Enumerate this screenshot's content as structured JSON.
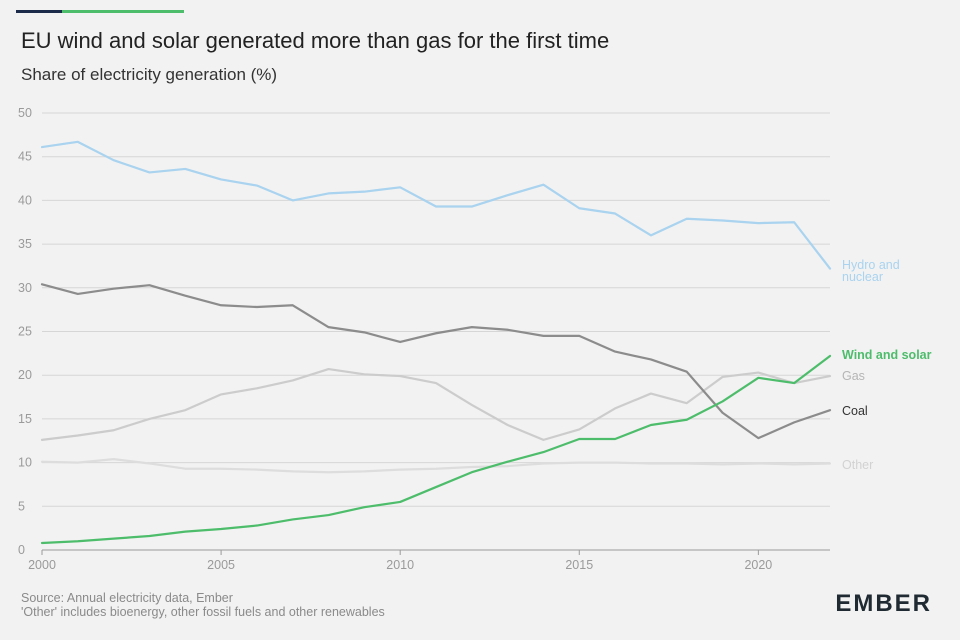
{
  "header": {
    "title": "EU wind and solar generated more than gas for the first time",
    "subtitle": "Share of electricity generation (%)",
    "accent_colors": [
      "#1c2b4a",
      "#4dbd6b"
    ]
  },
  "footer": {
    "source": "Source: Annual electricity data, Ember",
    "note": "'Other' includes bioenergy, other fossil fuels and other renewables",
    "logo": "EMBER"
  },
  "chart_data": {
    "type": "line",
    "title": "EU wind and solar generated more than gas for the first time",
    "subtitle": "Share of electricity generation (%)",
    "x": [
      2000,
      2001,
      2002,
      2003,
      2004,
      2005,
      2006,
      2007,
      2008,
      2009,
      2010,
      2011,
      2012,
      2013,
      2014,
      2015,
      2016,
      2017,
      2018,
      2019,
      2020,
      2021,
      2022
    ],
    "xlim": [
      2000,
      2022
    ],
    "ylim": [
      0,
      50
    ],
    "x_ticks": [
      "2000",
      "2005",
      "2010",
      "2015",
      "2020"
    ],
    "y_ticks": [
      "0",
      "5",
      "10",
      "15",
      "20",
      "25",
      "30",
      "35",
      "40",
      "45",
      "50"
    ],
    "grid": "horizontal",
    "series": [
      {
        "name": "Hydro and nuclear",
        "label_lines": [
          "Hydro and",
          "nuclear"
        ],
        "color": "#a9d3ef",
        "values": [
          46.1,
          46.7,
          44.6,
          43.2,
          43.6,
          42.4,
          41.7,
          40.0,
          40.8,
          41.0,
          41.5,
          39.3,
          39.3,
          40.6,
          41.8,
          39.1,
          38.5,
          36.0,
          37.9,
          37.7,
          37.4,
          37.5,
          32.2
        ]
      },
      {
        "name": "Coal",
        "label_lines": [
          "Coal"
        ],
        "color": "#8c8c8c",
        "values": [
          30.4,
          29.3,
          29.9,
          30.3,
          29.1,
          28.0,
          27.8,
          28.0,
          25.5,
          24.9,
          23.8,
          24.8,
          25.5,
          25.2,
          24.5,
          24.5,
          22.7,
          21.8,
          20.4,
          15.7,
          12.8,
          14.6,
          16.0
        ]
      },
      {
        "name": "Gas",
        "label_lines": [
          "Gas"
        ],
        "color": "#cccccc",
        "values": [
          12.6,
          13.1,
          13.7,
          15.0,
          16.0,
          17.8,
          18.5,
          19.4,
          20.7,
          20.1,
          19.9,
          19.1,
          16.6,
          14.3,
          12.6,
          13.8,
          16.2,
          17.9,
          16.8,
          19.8,
          20.3,
          19.1,
          19.9
        ]
      },
      {
        "name": "Wind and solar",
        "label_lines": [
          "Wind and solar"
        ],
        "color": "#4dbd6b",
        "values": [
          0.8,
          1.0,
          1.3,
          1.6,
          2.1,
          2.4,
          2.8,
          3.5,
          4.0,
          4.9,
          5.5,
          7.2,
          8.9,
          10.1,
          11.2,
          12.7,
          12.7,
          14.3,
          14.9,
          17.0,
          19.7,
          19.1,
          22.2
        ]
      },
      {
        "name": "Other",
        "label_lines": [
          "Other"
        ],
        "color": "#dddddd",
        "values": [
          10.1,
          10.0,
          10.4,
          9.9,
          9.3,
          9.3,
          9.2,
          9.0,
          8.9,
          9.0,
          9.2,
          9.3,
          9.5,
          9.6,
          9.9,
          10.0,
          10.0,
          9.9,
          9.9,
          9.8,
          9.9,
          9.8,
          9.9
        ]
      }
    ]
  }
}
